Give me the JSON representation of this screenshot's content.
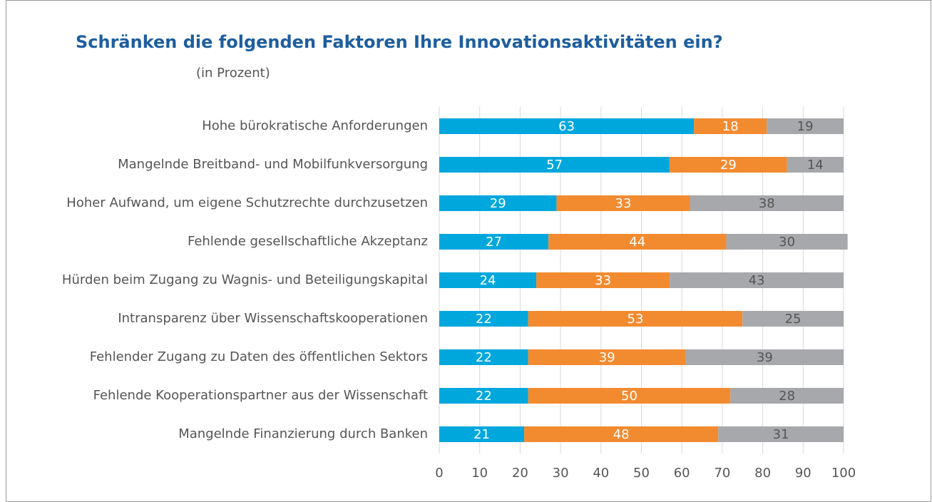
{
  "chart_data": {
    "type": "stacked-barh",
    "title": "Schränken die folgenden Faktoren Ihre Innovationsaktivitäten ein?",
    "subtitle": "(in Prozent)",
    "categories": [
      "Hohe bürokratische Anforderungen",
      "Mangelnde Breitband- und Mobilfunkversorgung",
      "Hoher Aufwand, um eigene Schutzrechte durchzusetzen",
      "Fehlende gesellschaftliche Akzeptanz",
      "Hürden beim Zugang zu Wagnis- und Beteiligungskapital",
      "Intransparenz über Wissenschaftskooperationen",
      "Fehlender Zugang zu Daten des öffentlichen Sektors",
      "Fehlende Kooperationspartner aus der Wissenschaft",
      "Mangelnde Finanzierung durch Banken"
    ],
    "series": [
      {
        "color": "#00a7dd",
        "label_color": "#ffffff",
        "values": [
          63,
          57,
          29,
          27,
          24,
          22,
          22,
          22,
          21
        ]
      },
      {
        "color": "#f28b30",
        "label_color": "#ffffff",
        "values": [
          18,
          29,
          33,
          44,
          33,
          53,
          39,
          50,
          48
        ]
      },
      {
        "color": "#a7a8ab",
        "label_color": "#555555",
        "values": [
          19,
          14,
          38,
          30,
          43,
          25,
          39,
          28,
          31
        ]
      }
    ],
    "xlim": [
      0,
      100
    ],
    "xticks": [
      0,
      10,
      20,
      30,
      40,
      50,
      60,
      70,
      80,
      90,
      100
    ],
    "grid": true
  }
}
